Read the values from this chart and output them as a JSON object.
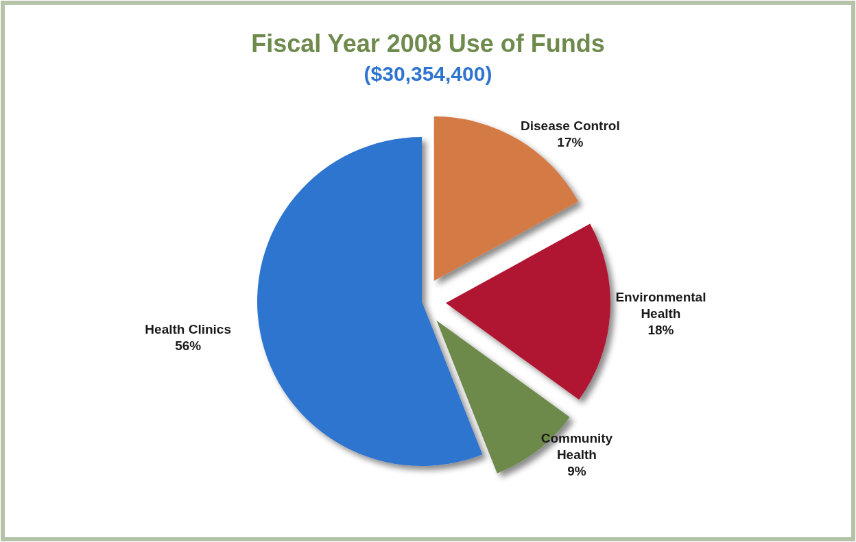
{
  "chart_data": {
    "type": "pie",
    "title": "Fiscal Year 2008 Use of Funds",
    "subtitle": "($30,354,400)",
    "categories": [
      "Disease Control",
      "Environmental Health",
      "Community Health",
      "Health Clinics"
    ],
    "values": [
      17,
      18,
      9,
      56
    ],
    "colors": [
      "#d47a45",
      "#b01733",
      "#6e8a4c",
      "#2e74d0"
    ],
    "value_labels": [
      "17%",
      "18%",
      "9%",
      "56%"
    ]
  }
}
